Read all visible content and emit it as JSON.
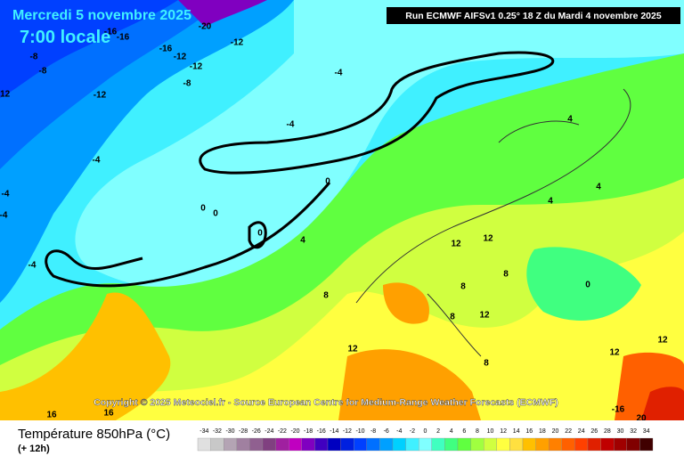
{
  "header": {
    "title": "Mercredi 5 novembre 2025",
    "time": "7:00 locale",
    "run": "Run ECMWF AIFSv1 0.25° 18 Z du Mardi 4 novembre 2025"
  },
  "copyright": "Copyright © 2025 Meteociel.fr - Source European Centre for Medium-Range Weather Forecasts (ECMWF)",
  "footer": {
    "parameter": "Température 850hPa (°C)",
    "lead": "(+ 12h)"
  },
  "legend": {
    "values": [
      -34,
      -32,
      -30,
      -28,
      -26,
      -24,
      -22,
      -20,
      -18,
      -16,
      -14,
      -12,
      -10,
      -8,
      -6,
      -4,
      -2,
      0,
      2,
      4,
      6,
      8,
      10,
      12,
      14,
      16,
      18,
      20,
      22,
      24,
      26,
      28,
      30,
      32,
      34
    ],
    "colors": [
      "#e0e0e0",
      "#c8c8c8",
      "#b4a4b4",
      "#a080a0",
      "#906090",
      "#804080",
      "#a020a0",
      "#c000c0",
      "#8000c0",
      "#4000c0",
      "#0000c0",
      "#0020e0",
      "#0040ff",
      "#0070ff",
      "#00a0ff",
      "#00d0ff",
      "#40f0ff",
      "#80ffff",
      "#40ffc0",
      "#40ff80",
      "#60ff40",
      "#a0ff40",
      "#d0ff40",
      "#ffff40",
      "#ffe040",
      "#ffc000",
      "#ffa000",
      "#ff8000",
      "#ff6000",
      "#ff4000",
      "#e02000",
      "#c00000",
      "#a00000",
      "#800000",
      "#400000"
    ]
  },
  "contour_labels": [
    -20,
    -16,
    -16,
    -12,
    -16,
    -12,
    -12,
    -8,
    -8,
    -12,
    -12,
    -8,
    -4,
    -4,
    -4,
    -4,
    -4,
    -4,
    0,
    0,
    0,
    0,
    4,
    4,
    4,
    4,
    8,
    8,
    8,
    8,
    12,
    12,
    12,
    12,
    16,
    16,
    0,
    12,
    12,
    -16,
    20,
    8
  ]
}
